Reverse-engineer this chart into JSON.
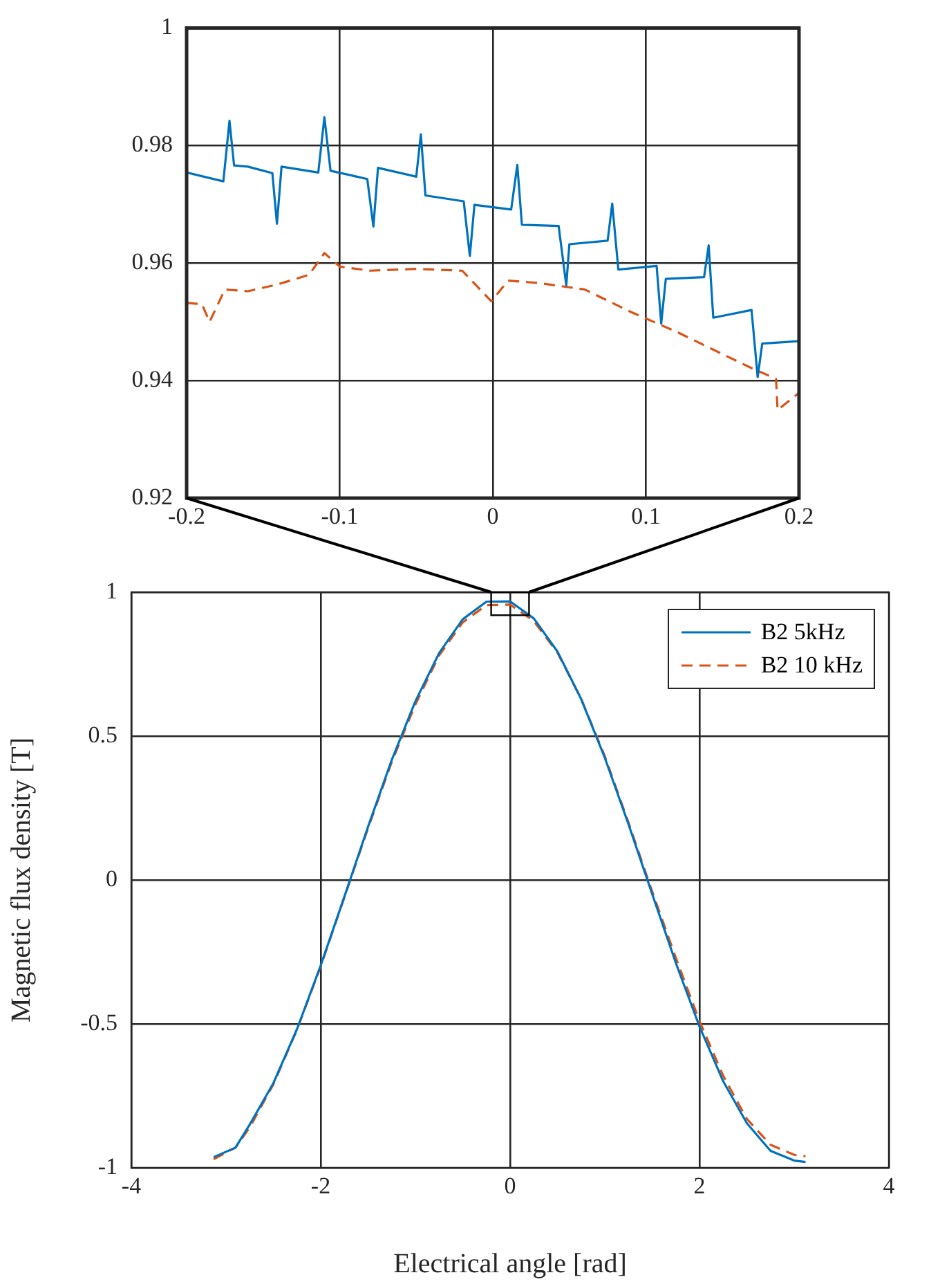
{
  "chart_data": [
    {
      "type": "line",
      "xlim": [
        -0.2,
        0.2
      ],
      "ylim": [
        0.92,
        1
      ],
      "xticks": [
        -0.2,
        -0.1,
        0,
        0.1,
        0.2
      ],
      "yticks": [
        0.92,
        0.94,
        0.96,
        0.98,
        1
      ],
      "grid": true,
      "legend": false,
      "series": [
        {
          "color": "#0072bd",
          "line_style": "solid",
          "x": [
            -0.2,
            -0.176,
            -0.172,
            -0.169,
            -0.16,
            -0.144,
            -0.141,
            -0.138,
            -0.114,
            -0.11,
            -0.106,
            -0.082,
            -0.078,
            -0.075,
            -0.05,
            -0.047,
            -0.044,
            -0.019,
            -0.015,
            -0.012,
            0.012,
            0.016,
            0.019,
            0.043,
            0.048,
            0.05,
            0.075,
            0.078,
            0.082,
            0.107,
            0.11,
            0.113,
            0.138,
            0.141,
            0.144,
            0.169,
            0.173,
            0.176,
            0.2
          ],
          "values": [
            0.9754,
            0.9739,
            0.9842,
            0.9766,
            0.9764,
            0.9753,
            0.9667,
            0.9764,
            0.9754,
            0.9848,
            0.9757,
            0.9743,
            0.9662,
            0.9762,
            0.9747,
            0.9819,
            0.9715,
            0.9705,
            0.9612,
            0.9699,
            0.9691,
            0.9767,
            0.9665,
            0.9663,
            0.9562,
            0.9632,
            0.9638,
            0.9701,
            0.9589,
            0.9595,
            0.9497,
            0.9573,
            0.9576,
            0.963,
            0.9507,
            0.952,
            0.9406,
            0.9463,
            0.9467
          ]
        },
        {
          "color": "#d95319",
          "line_style": "dashed",
          "x": [
            -0.2,
            -0.19,
            -0.185,
            -0.175,
            -0.16,
            -0.14,
            -0.12,
            -0.11,
            -0.1,
            -0.08,
            -0.05,
            -0.02,
            -0.001,
            0.01,
            0.03,
            0.06,
            0.09,
            0.12,
            0.15,
            0.17,
            0.185,
            0.186,
            0.2
          ],
          "values": [
            0.9532,
            0.953,
            0.95,
            0.9555,
            0.9552,
            0.9564,
            0.958,
            0.9617,
            0.9594,
            0.9587,
            0.959,
            0.9587,
            0.9535,
            0.957,
            0.9566,
            0.9555,
            0.9517,
            0.9483,
            0.9445,
            0.942,
            0.9403,
            0.935,
            0.9379
          ]
        }
      ]
    },
    {
      "type": "line",
      "xlabel": "Electrical angle [rad]",
      "ylabel": "Magnetic flux density [T]",
      "xlim": [
        -4,
        4
      ],
      "ylim": [
        -1,
        1
      ],
      "xticks": [
        -4,
        -2,
        0,
        2,
        4
      ],
      "yticks": [
        -1,
        -0.5,
        0,
        0.5,
        1
      ],
      "grid": true,
      "legend": "top right",
      "series": [
        {
          "name": "B2 5kHz",
          "color": "#0072bd",
          "line_style": "solid",
          "x": [
            -3.13,
            -2.9,
            -2.75,
            -2.5,
            -2.25,
            -2,
            -1.75,
            -1.5,
            -1.25,
            -1,
            -0.75,
            -0.5,
            -0.25,
            0,
            0.25,
            0.5,
            0.75,
            1,
            1.25,
            1.5,
            1.75,
            2,
            2.25,
            2.5,
            2.75,
            3,
            3.12
          ],
          "values": [
            -0.963,
            -0.93,
            -0.85,
            -0.706,
            -0.518,
            -0.297,
            -0.058,
            0.185,
            0.417,
            0.621,
            0.788,
            0.906,
            0.967,
            0.968,
            0.909,
            0.794,
            0.629,
            0.425,
            0.194,
            -0.048,
            -0.288,
            -0.509,
            -0.699,
            -0.845,
            -0.941,
            -0.975,
            -0.98
          ]
        },
        {
          "name": "B2 10 kHz",
          "color": "#d95319",
          "line_style": "dashed",
          "x": [
            -3.13,
            -2.9,
            -2.75,
            -2.5,
            -2.25,
            -2,
            -1.75,
            -1.5,
            -1.25,
            -1,
            -0.75,
            -0.5,
            -0.25,
            0,
            0.25,
            0.5,
            0.75,
            1,
            1.25,
            1.5,
            1.75,
            2,
            2.25,
            2.5,
            2.75,
            3,
            3.12
          ],
          "values": [
            -0.97,
            -0.93,
            -0.86,
            -0.71,
            -0.52,
            -0.3,
            -0.06,
            0.18,
            0.41,
            0.61,
            0.78,
            0.895,
            0.955,
            0.957,
            0.9,
            0.79,
            0.63,
            0.43,
            0.2,
            -0.04,
            -0.27,
            -0.49,
            -0.68,
            -0.83,
            -0.92,
            -0.955,
            -0.96
          ]
        }
      ]
    }
  ]
}
